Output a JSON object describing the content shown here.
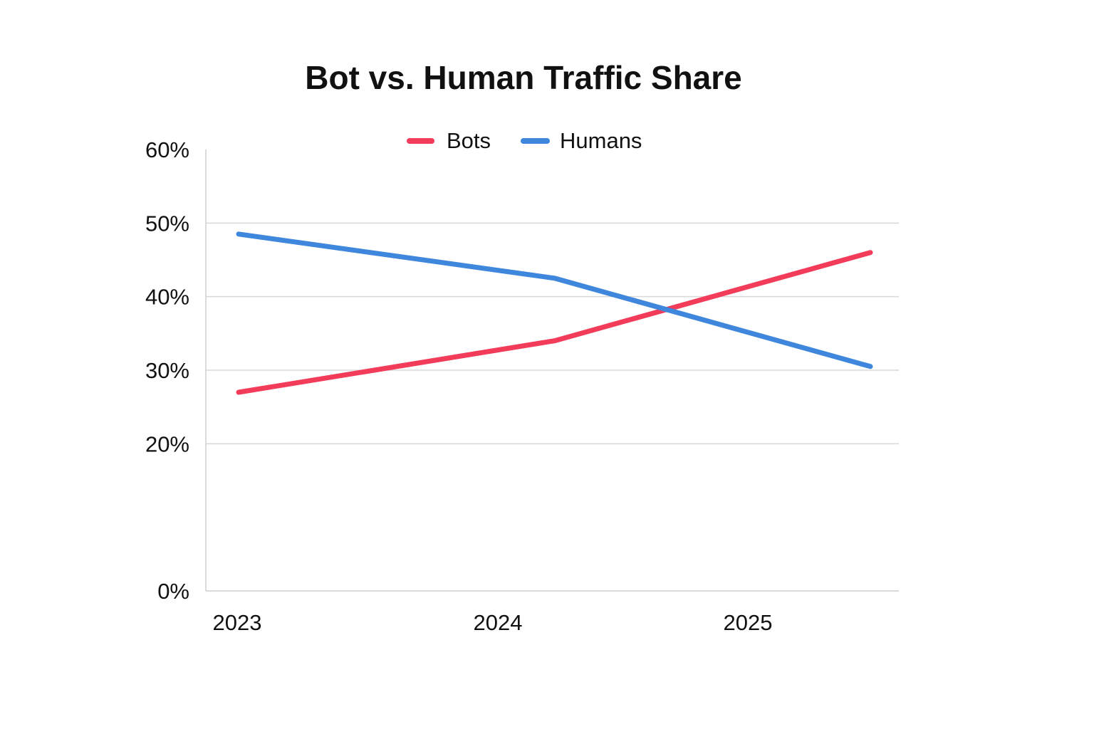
{
  "chart_data": {
    "type": "line",
    "title": "Bot vs. Human Traffic Share",
    "xlabel": "",
    "ylabel": "",
    "categories": [
      "2023",
      "2024",
      "2025"
    ],
    "x_ticks": [
      "2023",
      "2024",
      "2025"
    ],
    "x": [
      2023,
      2024,
      2025
    ],
    "ylim": [
      0,
      60
    ],
    "y_ticks": [
      0,
      20,
      30,
      40,
      50,
      60
    ],
    "y_tick_labels": [
      "0%",
      "20%",
      "30%",
      "40%",
      "50%",
      "60%"
    ],
    "grid": true,
    "legend_position": "top",
    "series": [
      {
        "name": "Bots",
        "color": "#f23c5a",
        "points": [
          {
            "x": 2023,
            "y": 27
          },
          {
            "x": 2024,
            "y": 34
          },
          {
            "x": 2025,
            "y": 46
          }
        ]
      },
      {
        "name": "Humans",
        "color": "#3f87dd",
        "points": [
          {
            "x": 2023,
            "y": 48.5
          },
          {
            "x": 2024,
            "y": 42.5
          },
          {
            "x": 2025,
            "y": 30.5
          }
        ]
      }
    ]
  }
}
